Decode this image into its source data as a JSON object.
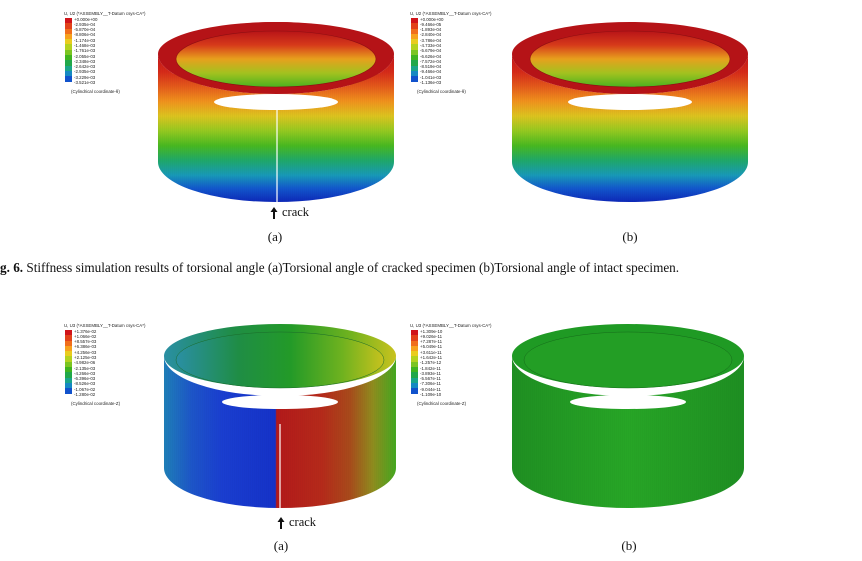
{
  "figure6": {
    "caption_label": "g. 6.",
    "caption_text": "Stiffness simulation results of torsional angle (a)Torsional angle of cracked specimen (b)Torsional angle of intact specimen.",
    "panel_a": {
      "legend_title": "U, U2 (*ASSEMBLY__T-Datum csys-CA*)",
      "legend_values": [
        "+0.000e+00",
        "-2.935e-04",
        "-5.870e-04",
        "-8.806e-04",
        "-1.174e-03",
        "-1.468e-03",
        "-1.761e-03",
        "-2.055e-03",
        "-2.348e-03",
        "-2.642e-03",
        "-2.935e-03",
        "-3.229e-03",
        "-3.521e-03"
      ],
      "coord_label": "(Cylindrical coordinate-θ)",
      "crack_label": "crack",
      "sub_label": "(a)"
    },
    "panel_b": {
      "legend_title": "U, U2 (*ASSEMBLY__T-Datum csys-CA*)",
      "legend_values": [
        "+0.000e+00",
        "-9.466e-05",
        "-1.893e-04",
        "-2.840e-04",
        "-3.786e-04",
        "-4.733e-04",
        "-5.679e-04",
        "-6.626e-04",
        "-7.572e-04",
        "-8.519e-04",
        "-9.466e-04",
        "-1.041e-03",
        "-1.136e-03"
      ],
      "coord_label": "(Cylindrical coordinate-θ)",
      "sub_label": "(b)"
    }
  },
  "figure7": {
    "panel_a": {
      "legend_title": "U, U3 (*ASSEMBLY__T-Datum csys-CA*)",
      "legend_values": [
        "+1.376e-02",
        "+1.066e-02",
        "+8.557e-03",
        "+6.386e-03",
        "+4.256e-03",
        "+2.125e-03",
        "-4.982e-06",
        "-2.135e-03",
        "-4.266e-03",
        "-6.396e-03",
        "-8.526e-03",
        "-1.067e-02",
        "-1.280e-02"
      ],
      "coord_label": "(Cylindrical coordinate-Z)",
      "crack_label": "crack",
      "sub_label": "(a)"
    },
    "panel_b": {
      "legend_title": "U, U3 (*ASSEMBLY__T-Datum csys-CA*)",
      "legend_values": [
        "+1.309e-10",
        "+9.026e-11",
        "+7.287e-11",
        "+5.049e-11",
        "+3.611e-11",
        "+1.642e-11",
        "-1.257e-12",
        "-1.842e-11",
        "-3.893e-11",
        "-5.567e-11",
        "-7.306e-11",
        "-9.044e-11",
        "-1.109e-10"
      ],
      "coord_label": "(Cylindrical coordinate-Z)",
      "sub_label": "(b)"
    }
  },
  "colors": {
    "contour": [
      "#d0141a",
      "#e2421a",
      "#f06e1c",
      "#f7a11d",
      "#e9cc1f",
      "#b4d21f",
      "#7bc521",
      "#3fb41f",
      "#21a84a",
      "#1aa58a",
      "#1689c2",
      "#1152cc",
      "#0c24c0"
    ]
  }
}
